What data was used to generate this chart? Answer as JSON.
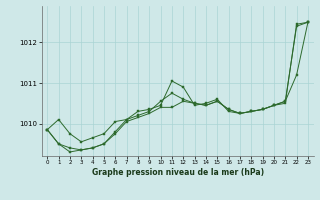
{
  "xlabel": "Graphe pression niveau de la mer (hPa)",
  "xlim": [
    -0.5,
    23.5
  ],
  "ylim": [
    1009.2,
    1012.9
  ],
  "yticks": [
    1010,
    1011,
    1012
  ],
  "xticks": [
    0,
    1,
    2,
    3,
    4,
    5,
    6,
    7,
    8,
    9,
    10,
    11,
    12,
    13,
    14,
    15,
    16,
    17,
    18,
    19,
    20,
    21,
    22,
    23
  ],
  "bg_color": "#cfe8e8",
  "grid_color": "#aad4d4",
  "line_color": "#2d6a2d",
  "marker_color": "#2d6a2d",
  "series": [
    [
      1009.85,
      1010.1,
      1009.75,
      1009.55,
      1009.65,
      1009.75,
      1010.05,
      1010.1,
      1010.3,
      1010.35,
      1010.45,
      1011.05,
      1010.9,
      1010.45,
      1010.5,
      1010.6,
      1010.3,
      1010.25,
      1010.3,
      1010.35,
      1010.45,
      1010.5,
      1012.45,
      1012.5
    ],
    [
      1009.85,
      1009.5,
      1009.4,
      1009.35,
      1009.4,
      1009.5,
      1009.8,
      1010.1,
      1010.2,
      1010.3,
      1010.55,
      1010.75,
      1010.6,
      1010.5,
      1010.45,
      1010.55,
      1010.35,
      1010.25,
      1010.3,
      1010.35,
      1010.45,
      1010.55,
      1011.2,
      1012.5
    ],
    [
      1009.85,
      1009.5,
      1009.3,
      1009.35,
      1009.4,
      1009.5,
      1009.75,
      1010.05,
      1010.15,
      1010.25,
      1010.4,
      1010.4,
      1010.55,
      1010.5,
      1010.45,
      1010.55,
      1010.35,
      1010.25,
      1010.3,
      1010.35,
      1010.45,
      1010.55,
      1012.4,
      1012.5
    ]
  ],
  "figsize": [
    3.2,
    2.0
  ],
  "dpi": 100
}
